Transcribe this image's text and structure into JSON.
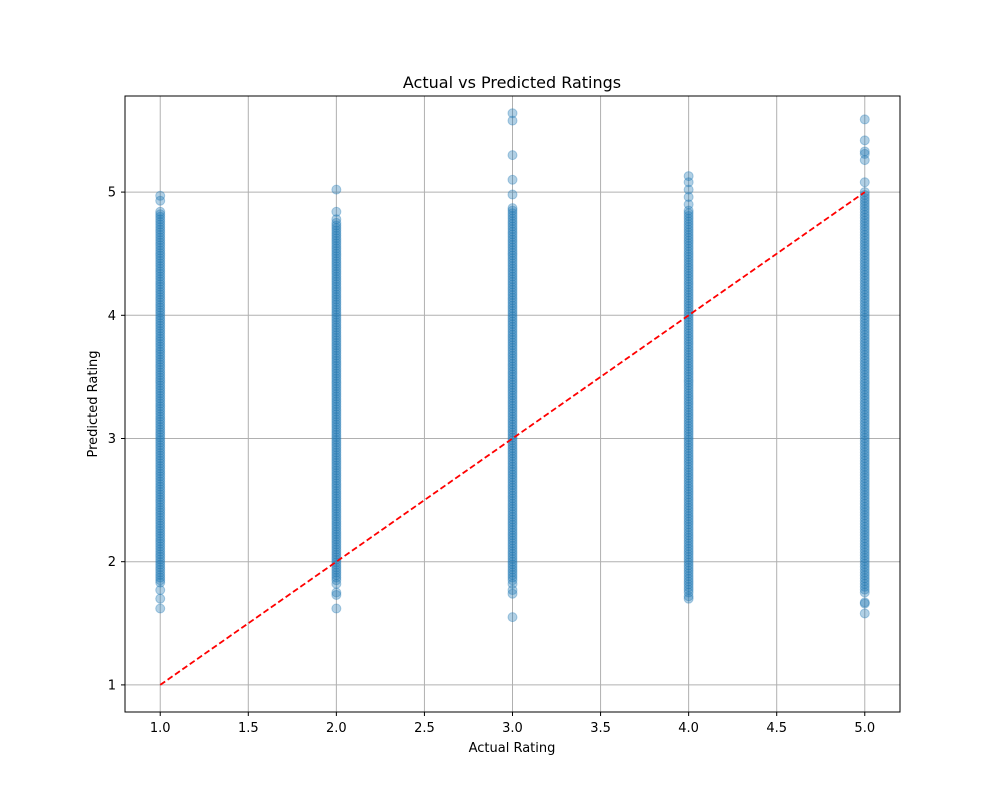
{
  "chart_data": {
    "type": "scatter",
    "title": "Actual vs Predicted Ratings",
    "xlabel": "Actual Rating",
    "ylabel": "Predicted Rating",
    "xlim": [
      0.8,
      5.2
    ],
    "ylim": [
      0.78,
      5.78
    ],
    "xticks": [
      "1.0",
      "1.5",
      "2.0",
      "2.5",
      "3.0",
      "3.5",
      "4.0",
      "4.5",
      "5.0"
    ],
    "yticks": [
      "1",
      "2",
      "3",
      "4",
      "5"
    ],
    "grid": true,
    "colors": {
      "points": "#1f77b4",
      "reference_line": "#ff0000"
    },
    "point_alpha": 0.35,
    "reference_line": {
      "x": [
        1,
        5
      ],
      "y": [
        1,
        5
      ],
      "style": "dashed"
    },
    "series": [
      {
        "x": 1,
        "y_range": [
          1.85,
          4.8
        ],
        "outliers": [
          4.97,
          4.93,
          4.84,
          4.82,
          1.83,
          1.77,
          1.7,
          1.62
        ]
      },
      {
        "x": 2,
        "y_range": [
          1.85,
          4.75
        ],
        "outliers": [
          5.02,
          4.84,
          4.78,
          1.82,
          1.75,
          1.73,
          1.62
        ]
      },
      {
        "x": 3,
        "y_range": [
          1.85,
          4.85
        ],
        "outliers": [
          5.64,
          5.58,
          5.3,
          5.1,
          4.98,
          4.87,
          1.82,
          1.77,
          1.74,
          1.55
        ]
      },
      {
        "x": 4,
        "y_range": [
          1.75,
          4.85
        ],
        "outliers": [
          5.13,
          5.08,
          5.02,
          4.96,
          4.9,
          1.72,
          1.7
        ]
      },
      {
        "x": 5,
        "y_range": [
          1.75,
          5.0
        ],
        "outliers": [
          5.59,
          5.42,
          5.33,
          5.31,
          5.26,
          5.08,
          1.67,
          1.66,
          1.58
        ]
      }
    ]
  }
}
